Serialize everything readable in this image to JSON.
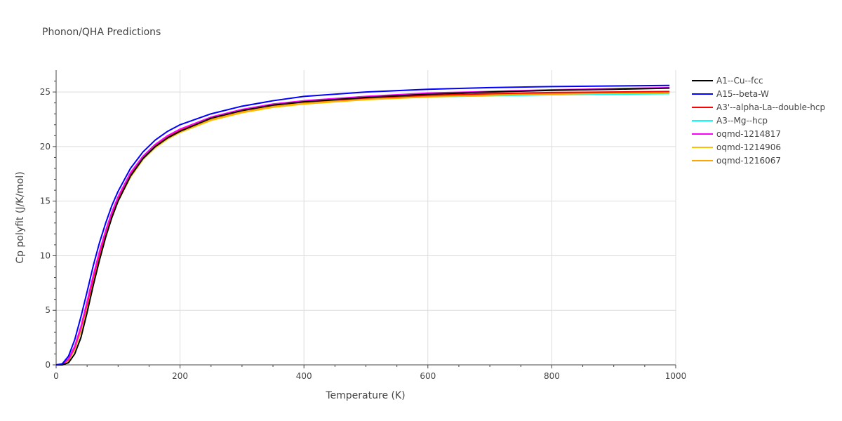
{
  "chart_data": {
    "type": "line",
    "title": "Phonon/QHA Predictions",
    "xlabel": "Temperature (K)",
    "ylabel": "Cp polyfit (J/K/mol)",
    "xlim": [
      0,
      1000
    ],
    "ylim": [
      0,
      27
    ],
    "xticks": [
      0,
      200,
      400,
      600,
      800,
      1000
    ],
    "yticks": [
      0,
      5,
      10,
      15,
      20,
      25
    ],
    "grid": true,
    "legend_position": "top-right",
    "series": [
      {
        "name": "A1--Cu--fcc",
        "color": "#000000",
        "points": [
          [
            0,
            0
          ],
          [
            10,
            0
          ],
          [
            20,
            0.2
          ],
          [
            30,
            1.0
          ],
          [
            40,
            2.5
          ],
          [
            50,
            4.8
          ],
          [
            60,
            7.3
          ],
          [
            70,
            9.6
          ],
          [
            80,
            11.7
          ],
          [
            90,
            13.5
          ],
          [
            100,
            15.0
          ],
          [
            120,
            17.3
          ],
          [
            140,
            18.9
          ],
          [
            160,
            20.0
          ],
          [
            180,
            20.8
          ],
          [
            200,
            21.4
          ],
          [
            250,
            22.6
          ],
          [
            300,
            23.3
          ],
          [
            350,
            23.8
          ],
          [
            400,
            24.1
          ],
          [
            500,
            24.5
          ],
          [
            600,
            24.8
          ],
          [
            700,
            25.0
          ],
          [
            800,
            25.15
          ],
          [
            900,
            25.25
          ],
          [
            990,
            25.35
          ]
        ]
      },
      {
        "name": "A15--beta-W",
        "color": "#0000ff",
        "points": [
          [
            0,
            0
          ],
          [
            10,
            0.1
          ],
          [
            20,
            0.8
          ],
          [
            30,
            2.3
          ],
          [
            40,
            4.4
          ],
          [
            50,
            6.7
          ],
          [
            60,
            9.1
          ],
          [
            70,
            11.2
          ],
          [
            80,
            13.0
          ],
          [
            90,
            14.6
          ],
          [
            100,
            15.9
          ],
          [
            120,
            18.0
          ],
          [
            140,
            19.5
          ],
          [
            160,
            20.6
          ],
          [
            180,
            21.4
          ],
          [
            200,
            22.0
          ],
          [
            250,
            23.0
          ],
          [
            300,
            23.7
          ],
          [
            350,
            24.2
          ],
          [
            400,
            24.6
          ],
          [
            500,
            25.0
          ],
          [
            600,
            25.25
          ],
          [
            700,
            25.4
          ],
          [
            800,
            25.5
          ],
          [
            900,
            25.55
          ],
          [
            990,
            25.6
          ]
        ]
      },
      {
        "name": "A3'--alpha-La--double-hcp",
        "color": "#ff0000",
        "points": [
          [
            0,
            0
          ],
          [
            10,
            0.05
          ],
          [
            20,
            0.5
          ],
          [
            30,
            1.6
          ],
          [
            40,
            3.4
          ],
          [
            50,
            5.6
          ],
          [
            60,
            8.0
          ],
          [
            70,
            10.2
          ],
          [
            80,
            12.2
          ],
          [
            90,
            13.9
          ],
          [
            100,
            15.3
          ],
          [
            120,
            17.5
          ],
          [
            140,
            19.0
          ],
          [
            160,
            20.1
          ],
          [
            180,
            20.9
          ],
          [
            200,
            21.5
          ],
          [
            250,
            22.6
          ],
          [
            300,
            23.3
          ],
          [
            350,
            23.8
          ],
          [
            400,
            24.1
          ],
          [
            500,
            24.45
          ],
          [
            600,
            24.7
          ],
          [
            700,
            24.85
          ],
          [
            800,
            24.95
          ],
          [
            900,
            25.0
          ],
          [
            990,
            25.05
          ]
        ]
      },
      {
        "name": "A3--Mg--hcp",
        "color": "#00ffff",
        "points": [
          [
            0,
            0
          ],
          [
            10,
            0.05
          ],
          [
            20,
            0.45
          ],
          [
            30,
            1.5
          ],
          [
            40,
            3.2
          ],
          [
            50,
            5.4
          ],
          [
            60,
            7.8
          ],
          [
            70,
            10.0
          ],
          [
            80,
            12.0
          ],
          [
            90,
            13.7
          ],
          [
            100,
            15.1
          ],
          [
            120,
            17.3
          ],
          [
            140,
            18.9
          ],
          [
            160,
            20.0
          ],
          [
            180,
            20.8
          ],
          [
            200,
            21.4
          ],
          [
            250,
            22.5
          ],
          [
            300,
            23.2
          ],
          [
            350,
            23.7
          ],
          [
            400,
            24.0
          ],
          [
            500,
            24.35
          ],
          [
            600,
            24.55
          ],
          [
            700,
            24.65
          ],
          [
            800,
            24.75
          ],
          [
            900,
            24.8
          ],
          [
            990,
            24.85
          ]
        ]
      },
      {
        "name": "oqmd-1214817",
        "color": "#ff00ff",
        "points": [
          [
            0,
            0
          ],
          [
            10,
            0.05
          ],
          [
            20,
            0.55
          ],
          [
            30,
            1.7
          ],
          [
            40,
            3.5
          ],
          [
            50,
            5.8
          ],
          [
            60,
            8.2
          ],
          [
            70,
            10.4
          ],
          [
            80,
            12.3
          ],
          [
            90,
            14.0
          ],
          [
            100,
            15.4
          ],
          [
            120,
            17.6
          ],
          [
            140,
            19.1
          ],
          [
            160,
            20.2
          ],
          [
            180,
            21.0
          ],
          [
            200,
            21.6
          ],
          [
            250,
            22.7
          ],
          [
            300,
            23.4
          ],
          [
            350,
            23.9
          ],
          [
            400,
            24.2
          ],
          [
            500,
            24.6
          ],
          [
            600,
            24.9
          ],
          [
            700,
            25.05
          ],
          [
            800,
            25.2
          ],
          [
            900,
            25.3
          ],
          [
            990,
            25.4
          ]
        ]
      },
      {
        "name": "oqmd-1214906",
        "color": "#ffbf00",
        "points": [
          [
            0,
            0
          ],
          [
            10,
            0.05
          ],
          [
            20,
            0.4
          ],
          [
            30,
            1.4
          ],
          [
            40,
            3.1
          ],
          [
            50,
            5.3
          ],
          [
            60,
            7.7
          ],
          [
            70,
            9.9
          ],
          [
            80,
            11.9
          ],
          [
            90,
            13.6
          ],
          [
            100,
            15.0
          ],
          [
            120,
            17.2
          ],
          [
            140,
            18.8
          ],
          [
            160,
            19.9
          ],
          [
            180,
            20.7
          ],
          [
            200,
            21.3
          ],
          [
            250,
            22.4
          ],
          [
            300,
            23.1
          ],
          [
            350,
            23.6
          ],
          [
            400,
            23.9
          ],
          [
            500,
            24.3
          ],
          [
            600,
            24.55
          ],
          [
            700,
            24.7
          ],
          [
            800,
            24.8
          ],
          [
            900,
            24.9
          ],
          [
            990,
            24.95
          ]
        ]
      },
      {
        "name": "oqmd-1216067",
        "color": "#ffa500",
        "points": [
          [
            0,
            0
          ],
          [
            10,
            0.05
          ],
          [
            20,
            0.45
          ],
          [
            30,
            1.5
          ],
          [
            40,
            3.2
          ],
          [
            50,
            5.4
          ],
          [
            60,
            7.8
          ],
          [
            70,
            10.0
          ],
          [
            80,
            12.0
          ],
          [
            90,
            13.7
          ],
          [
            100,
            15.1
          ],
          [
            120,
            17.3
          ],
          [
            140,
            18.9
          ],
          [
            160,
            20.0
          ],
          [
            180,
            20.8
          ],
          [
            200,
            21.4
          ],
          [
            250,
            22.5
          ],
          [
            300,
            23.2
          ],
          [
            350,
            23.7
          ],
          [
            400,
            24.0
          ],
          [
            500,
            24.4
          ],
          [
            600,
            24.6
          ],
          [
            700,
            24.75
          ],
          [
            800,
            24.85
          ],
          [
            900,
            24.95
          ],
          [
            990,
            25.0
          ]
        ]
      }
    ]
  }
}
